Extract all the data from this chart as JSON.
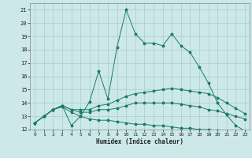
{
  "title": "",
  "xlabel": "Humidex (Indice chaleur)",
  "bg_color": "#cce8e8",
  "grid_color": "#aacccc",
  "line_color": "#1a7a6e",
  "xlim": [
    -0.5,
    23.5
  ],
  "ylim": [
    12,
    21.5
  ],
  "xticks": [
    0,
    1,
    2,
    3,
    4,
    5,
    6,
    7,
    8,
    9,
    10,
    11,
    12,
    13,
    14,
    15,
    16,
    17,
    18,
    19,
    20,
    21,
    22,
    23
  ],
  "yticks": [
    12,
    13,
    14,
    15,
    16,
    17,
    18,
    19,
    20,
    21
  ],
  "line1_x": [
    0,
    1,
    2,
    3,
    4,
    5,
    6,
    7,
    8,
    9,
    10,
    11,
    12,
    13,
    14,
    15,
    16,
    17,
    18,
    19,
    20,
    21,
    22,
    23
  ],
  "line1_y": [
    12.5,
    13.0,
    13.5,
    13.8,
    12.3,
    13.0,
    14.1,
    16.4,
    14.3,
    18.2,
    21.0,
    19.2,
    18.5,
    18.5,
    18.3,
    19.2,
    18.3,
    17.8,
    16.7,
    15.5,
    14.0,
    13.1,
    12.3,
    11.9
  ],
  "line2_x": [
    0,
    1,
    2,
    3,
    4,
    5,
    6,
    7,
    8,
    9,
    10,
    11,
    12,
    13,
    14,
    15,
    16,
    17,
    18,
    19,
    20,
    21,
    22,
    23
  ],
  "line2_y": [
    12.5,
    13.0,
    13.5,
    13.8,
    13.5,
    13.5,
    13.5,
    13.8,
    13.9,
    14.2,
    14.5,
    14.7,
    14.8,
    14.9,
    15.0,
    15.1,
    15.0,
    14.9,
    14.8,
    14.7,
    14.4,
    14.0,
    13.6,
    13.2
  ],
  "line3_x": [
    0,
    1,
    2,
    3,
    4,
    5,
    6,
    7,
    8,
    9,
    10,
    11,
    12,
    13,
    14,
    15,
    16,
    17,
    18,
    19,
    20,
    21,
    22,
    23
  ],
  "line3_y": [
    12.5,
    13.0,
    13.5,
    13.8,
    13.5,
    13.3,
    13.3,
    13.5,
    13.5,
    13.6,
    13.8,
    14.0,
    14.0,
    14.0,
    14.0,
    14.0,
    13.9,
    13.8,
    13.7,
    13.5,
    13.4,
    13.2,
    13.0,
    12.8
  ],
  "line4_x": [
    0,
    1,
    2,
    3,
    4,
    5,
    6,
    7,
    8,
    9,
    10,
    11,
    12,
    13,
    14,
    15,
    16,
    17,
    18,
    19,
    20,
    21,
    22,
    23
  ],
  "line4_y": [
    12.5,
    13.0,
    13.5,
    13.7,
    13.3,
    13.0,
    12.8,
    12.7,
    12.7,
    12.6,
    12.5,
    12.4,
    12.4,
    12.3,
    12.3,
    12.2,
    12.1,
    12.1,
    12.0,
    12.0,
    11.95,
    11.9,
    11.9,
    11.85
  ]
}
